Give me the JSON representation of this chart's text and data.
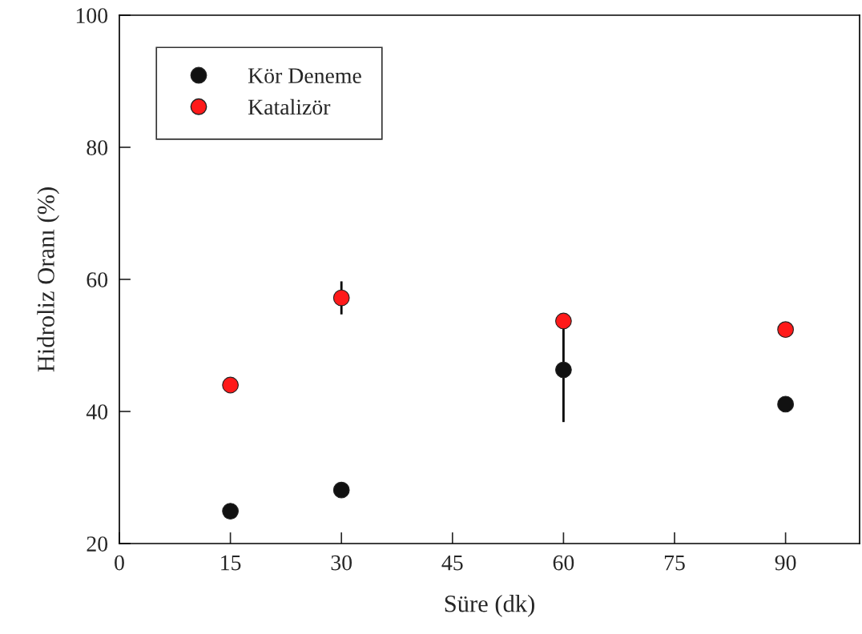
{
  "chart_data": {
    "type": "scatter",
    "xlabel": "Süre (dk)",
    "ylabel": "Hidroliz Oranı (%)",
    "x": [
      15,
      30,
      60,
      90
    ],
    "series": [
      {
        "name": "Kör Deneme",
        "color": "#111111",
        "values": [
          24.9,
          28.1,
          46.3,
          41.1
        ],
        "errors": [
          null,
          null,
          7.9,
          null
        ]
      },
      {
        "name": "Katalizör",
        "color": "#ff1a1a",
        "values": [
          44.0,
          57.2,
          53.7,
          52.4
        ],
        "errors": [
          null,
          2.5,
          null,
          null
        ]
      }
    ],
    "xlim": [
      0,
      100
    ],
    "xticks": [
      0,
      15,
      30,
      45,
      60,
      75,
      90
    ],
    "ylim": [
      20,
      100
    ],
    "yticks": [
      20,
      40,
      60,
      80,
      100
    ],
    "grid": false,
    "legend": "top left",
    "marker": "circle"
  }
}
